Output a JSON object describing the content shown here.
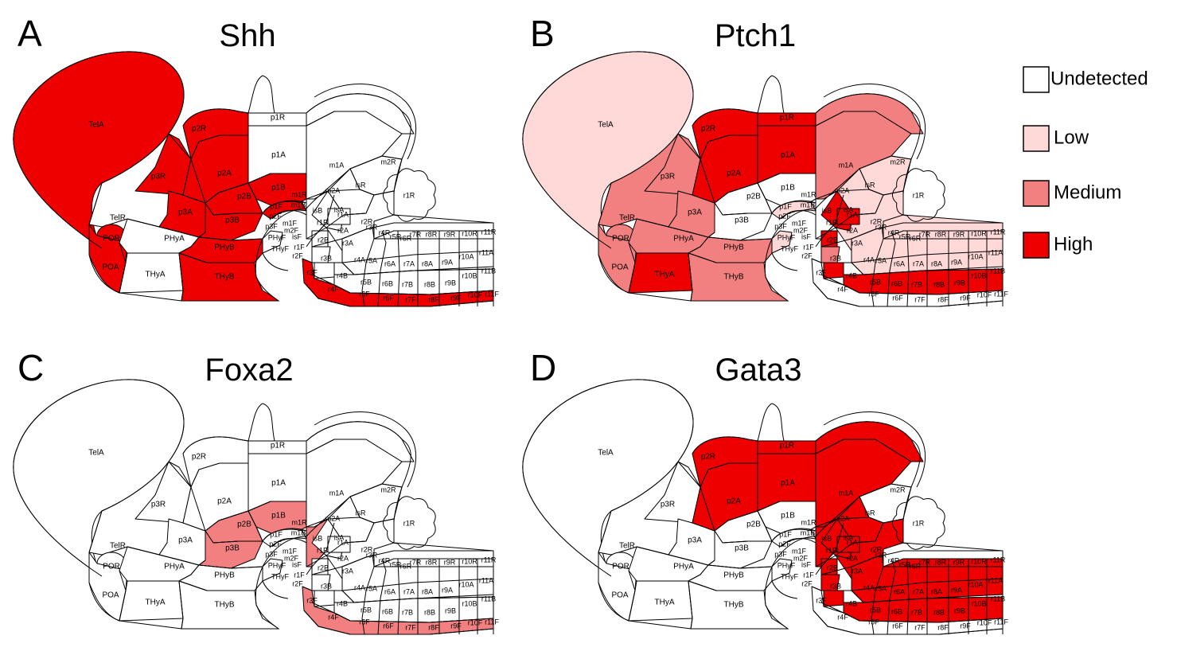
{
  "colors": {
    "undetected": "#ffffff",
    "low": "#ffd8d8",
    "medium": "#f38080",
    "high": "#ee0000"
  },
  "legend": [
    {
      "level": "undetected",
      "label": "Undetected"
    },
    {
      "level": "low",
      "label": "Low"
    },
    {
      "level": "medium",
      "label": "Medium"
    },
    {
      "level": "high",
      "label": "High"
    }
  ],
  "panels": [
    {
      "letter": "A",
      "title": "Shh",
      "expression": {
        "TelA": "high",
        "POR": "high",
        "POA": "high",
        "p2R": "high",
        "p2A": "high",
        "p3R": "high",
        "p3A": "high",
        "p2B": "high",
        "p3B": "high",
        "p1B": "high",
        "PHyB": "high",
        "THyB": "high",
        "p1F": "high",
        "rF": "high"
      }
    },
    {
      "letter": "B",
      "title": "Ptch1",
      "expression": {
        "TelA": "low",
        "TelR": "medium",
        "POR": "medium",
        "POA": "medium",
        "p3R": "medium",
        "p3A": "medium",
        "PHyA": "medium",
        "PHyB": "medium",
        "THyB": "medium",
        "THyA": "high",
        "p2R": "high",
        "p2A": "high",
        "p1R": "high",
        "p1A": "high",
        "mA": "medium",
        "mR": "medium",
        "isA": "low",
        "isR": "low",
        "rMid": "low",
        "isB": "high",
        "r1A": "high",
        "r1B": "high",
        "r2B": "medium",
        "r3B": "high",
        "rA": "low",
        "rR": "low",
        "rB": "high",
        "p1F": "low",
        "PHyF": "low"
      }
    },
    {
      "letter": "C",
      "title": "Foxa2",
      "expression": {
        "p2B": "medium",
        "p3B": "medium",
        "p1B": "medium",
        "mB": "medium",
        "rF": "medium"
      }
    },
    {
      "letter": "D",
      "title": "Gata3",
      "expression": {
        "p2R": "high",
        "p2A": "high",
        "p1R": "high",
        "p1A": "high",
        "mA": "high",
        "mR": "high",
        "mB": "high",
        "isB": "high",
        "isA": "high",
        "r1A": "high",
        "r1B": "high",
        "r2B": "high",
        "r3B": "high",
        "rA": "high",
        "rB": "high",
        "rMid": "high"
      }
    }
  ],
  "labels": {
    "TelA": "TelA",
    "TelR": "TelR",
    "POR": "POR",
    "POA": "POA",
    "PHyA": "PHyA",
    "PHyB": "PHyB",
    "THyA": "THyA",
    "THyB": "THyB",
    "PHyF": "PHyF",
    "THyF": "THyF",
    "p1R": "p1R",
    "p1A": "p1A",
    "p1B": "p1B",
    "p1F": "p1F",
    "p2R": "p2R",
    "p2A": "p2A",
    "p2B": "p2B",
    "p2F": "p2F",
    "p3R": "p3R",
    "p3A": "p3A",
    "p3B": "p3B",
    "p3F": "p3F",
    "m1R": "m1R",
    "m1A": "m1A",
    "m1B": "m1B",
    "m1F": "m1F",
    "m2R": "m2R",
    "m2A": "m2A",
    "m2F": "m2F",
    "isR": "isR",
    "isA": "isA",
    "isB": "isB",
    "isF": "isF",
    "r1R": "r1R",
    "r1A": "r1A",
    "r1B": "r1B",
    "r1F": "r1F",
    "r2A": "r2A",
    "r2B": "r2B",
    "r2F": "r2F",
    "r2R": "r2R",
    "r3A": "r3A",
    "r3B": "r3B",
    "r3F": "r3F",
    "r3R": "r3R",
    "r4A": "r4A",
    "r4B": "r4B",
    "r4F": "r4F",
    "r4R": "r4R",
    "r5A": "r5A",
    "r5B": "r5B",
    "r5F": "r5F",
    "r5R": "r5R",
    "r6A": "r6A",
    "r6B": "r6B",
    "r6F": "r6F",
    "r6R": "r6R",
    "r7A": "r7A",
    "r7B": "r7B",
    "r7F": "r7F",
    "r7R": "r7R",
    "r8A": "r8A",
    "r8B": "r8B",
    "r8F": "r8F",
    "r8R": "r8R",
    "r9A": "r9A",
    "r9B": "r9B",
    "r9F": "r9F",
    "r9R": "r9R",
    "r10A": "r10A",
    "r10B": "r10B",
    "r10F": "r10F",
    "r10R": "r10R",
    "r11A": "r11A",
    "r11B": "r11B",
    "r11F": "r11F",
    "r11R": "r11R"
  }
}
